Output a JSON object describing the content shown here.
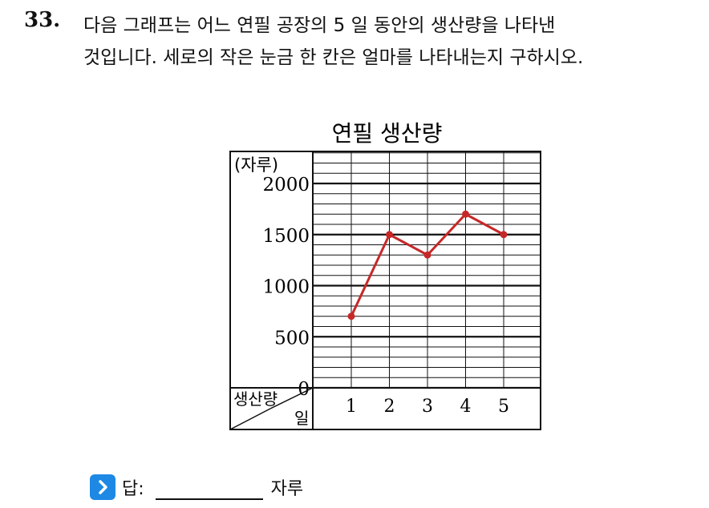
{
  "question": {
    "number": "33.",
    "line1": "다음 그래프는 어느 연필 공장의 5 일 동안의 생산량을 나타낸",
    "line2": "것입니다. 세로의 작은 눈금 한 칸은 얼마를 나타내는지 구하시오."
  },
  "chart_data": {
    "type": "line",
    "title": "연필 생산량",
    "unit_label": "(자루)",
    "corner_top": "생산량",
    "corner_bottom": "일",
    "categories": [
      "1",
      "2",
      "3",
      "4",
      "5"
    ],
    "values": [
      700,
      1500,
      1300,
      1700,
      1500
    ],
    "y_ticks": [
      0,
      500,
      1000,
      1500,
      2000
    ],
    "ylim": [
      0,
      2000
    ],
    "minor_step": 100,
    "grid": true,
    "colors": {
      "line": "#c62828",
      "grid": "#111111"
    }
  },
  "answer": {
    "label": "답:",
    "unit": "자루",
    "icon": "chevron-right-icon"
  }
}
